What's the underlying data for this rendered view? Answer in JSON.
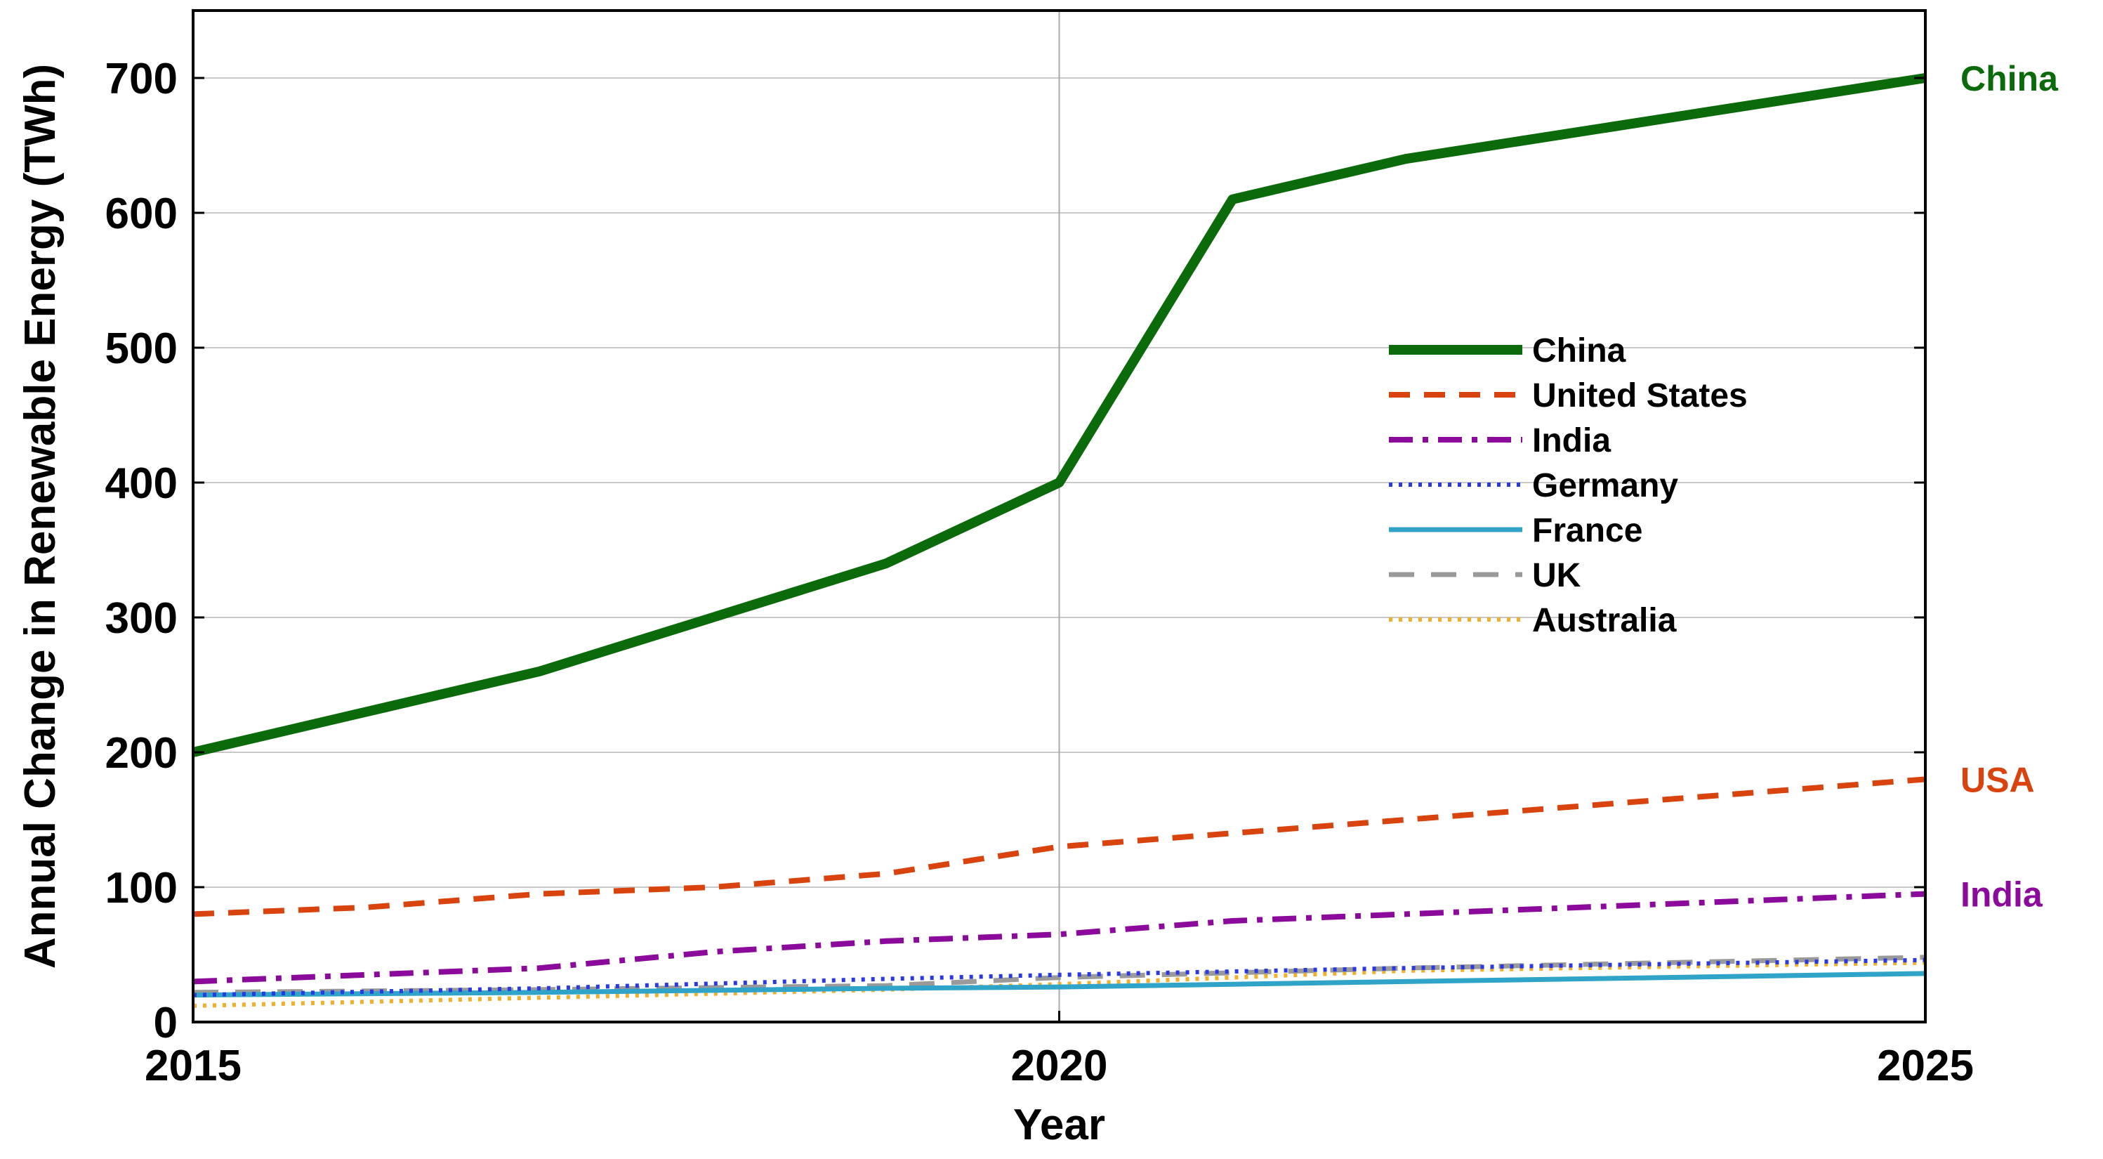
{
  "chart_data": {
    "type": "line",
    "title": "",
    "xlabel": "Year",
    "ylabel": "Annual Change in Renewable Energy (TWh)",
    "xlim": [
      2015,
      2025
    ],
    "ylim": [
      0,
      750
    ],
    "xticks": [
      2015,
      2020,
      2025
    ],
    "yticks": [
      0,
      100,
      200,
      300,
      400,
      500,
      600,
      700
    ],
    "grid": true,
    "legend_position": "right-middle",
    "series": [
      {
        "name": "China",
        "color": "#0b6b0b",
        "style": "solid-thick",
        "x": [
          2015,
          2017,
          2019,
          2020,
          2021,
          2022,
          2025
        ],
        "y": [
          200,
          260,
          340,
          400,
          610,
          640,
          700
        ],
        "end_label": "China"
      },
      {
        "name": "United States",
        "color": "#d9430e",
        "style": "dashed",
        "x": [
          2015,
          2016,
          2017,
          2018,
          2019,
          2020,
          2021,
          2022,
          2025
        ],
        "y": [
          80,
          85,
          95,
          100,
          110,
          130,
          140,
          150,
          180
        ],
        "end_label": "USA"
      },
      {
        "name": "India",
        "color": "#8b0a9c",
        "style": "dashdot",
        "x": [
          2015,
          2017,
          2018,
          2019,
          2020,
          2021,
          2022,
          2025
        ],
        "y": [
          30,
          40,
          52,
          60,
          65,
          75,
          80,
          95
        ],
        "end_label": "India"
      },
      {
        "name": "Germany",
        "color": "#2a3ae0",
        "style": "dotted",
        "x": [
          2015,
          2017,
          2019,
          2020,
          2022,
          2025
        ],
        "y": [
          20,
          25,
          32,
          35,
          40,
          46
        ],
        "end_label": ""
      },
      {
        "name": "France",
        "color": "#30a3c8",
        "style": "solid",
        "x": [
          2015,
          2017,
          2019,
          2020,
          2022,
          2025
        ],
        "y": [
          20,
          22,
          25,
          26,
          30,
          36
        ],
        "end_label": ""
      },
      {
        "name": "UK",
        "color": "#9a9a9a",
        "style": "longdash",
        "x": [
          2015,
          2017,
          2019,
          2020,
          2022,
          2025
        ],
        "y": [
          22,
          24,
          27,
          33,
          40,
          48
        ],
        "end_label": ""
      },
      {
        "name": "Australia",
        "color": "#f2b02a",
        "style": "dotted",
        "x": [
          2015,
          2017,
          2019,
          2020,
          2022,
          2025
        ],
        "y": [
          12,
          18,
          24,
          28,
          38,
          44
        ],
        "end_label": ""
      }
    ]
  }
}
